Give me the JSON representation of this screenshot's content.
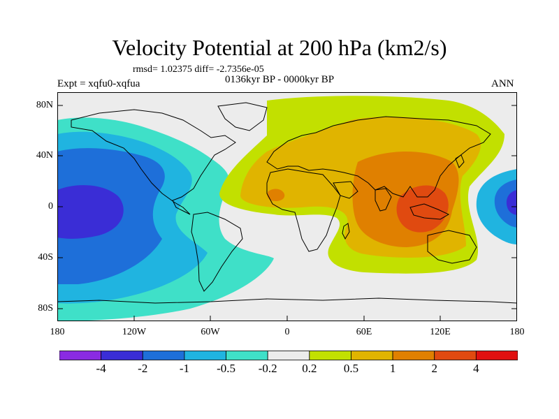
{
  "title": "Velocity Potential at 200 hPa (km2/s)",
  "stats": "rmsd= 1.02375 diff= -2.7356e-05",
  "experiment": "Expt = xqfu0-xqfua",
  "period": "0136kyr BP - 0000kyr BP",
  "season": "ANN",
  "y_ticks": [
    "80N",
    "40N",
    "0",
    "40S",
    "80S"
  ],
  "x_ticks": [
    "180",
    "120W",
    "60W",
    "0",
    "60E",
    "120E",
    "180"
  ],
  "colorbar": {
    "labels": [
      "-4",
      "-2",
      "-1",
      "-0.5",
      "-0.2",
      "0.2",
      "0.5",
      "1",
      "2",
      "4"
    ],
    "colors": [
      "#8a2be2",
      "#3a2dd6",
      "#1e6fd9",
      "#20b4e0",
      "#3fe0c8",
      "#ececec",
      "#c2e000",
      "#e0b400",
      "#e08000",
      "#e04a10",
      "#e01010"
    ]
  },
  "colors": {
    "ocean_grey": "#ececec",
    "coast": "#000000"
  }
}
